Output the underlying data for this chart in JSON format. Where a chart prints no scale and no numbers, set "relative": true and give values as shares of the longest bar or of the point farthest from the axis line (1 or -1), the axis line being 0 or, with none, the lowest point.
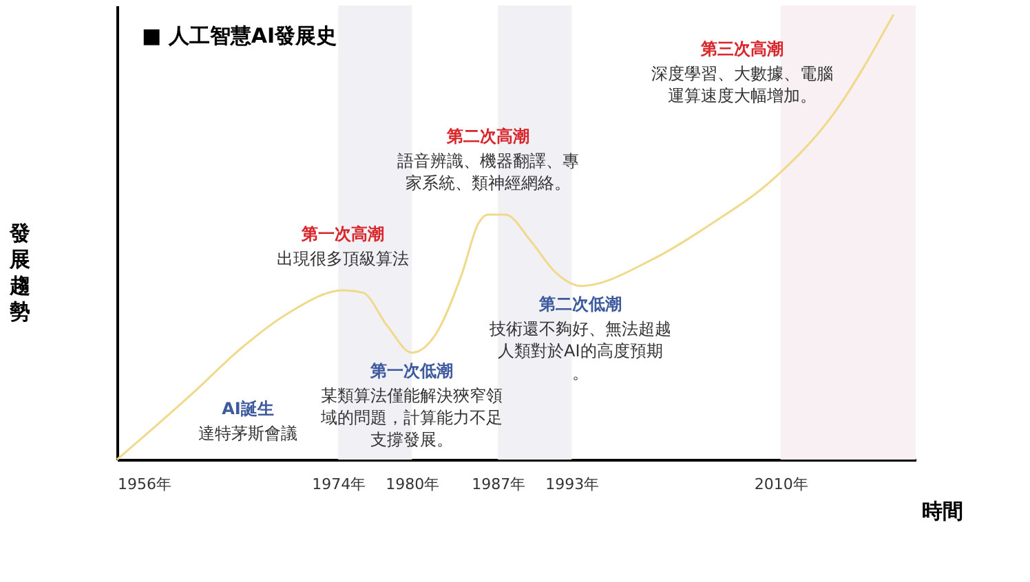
{
  "chart_data": {
    "type": "line",
    "title": "■ 人工智慧AI發展史",
    "xlabel": "時間",
    "ylabel": "發展趨勢",
    "relative": true,
    "xlim": [
      1956,
      2021
    ],
    "xticks": [
      {
        "value": 1956,
        "label": "1956年"
      },
      {
        "value": 1974,
        "label": "1974年"
      },
      {
        "value": 1980,
        "label": "1980年"
      },
      {
        "value": 1987,
        "label": "1987年"
      },
      {
        "value": 1993,
        "label": "1993年"
      },
      {
        "value": 2010,
        "label": "2010年"
      }
    ],
    "grid": false,
    "series": [
      {
        "color": "#f0d98a",
        "x": [
          1956,
          1962.2,
          1966.1,
          1970,
          1974.4,
          1976,
          1978,
          1980,
          1981.9,
          1984.1,
          1985.4,
          1986.2,
          1987.6,
          1989.7,
          1991.7,
          1993.7,
          1999.6,
          2004.4,
          2009.4,
          2014.4,
          2019.2
        ],
        "values": [
          0,
          0.15,
          0.25,
          0.33,
          0.38,
          0.375,
          0.3,
          0.24,
          0.28,
          0.42,
          0.53,
          0.55,
          0.55,
          0.49,
          0.42,
          0.39,
          0.45,
          0.53,
          0.63,
          0.78,
          1
        ]
      }
    ],
    "bands": [
      {
        "axis": "x",
        "from": 1974,
        "to": 1980,
        "color": "#f1f1f5"
      },
      {
        "axis": "x",
        "from": 1987,
        "to": 1993,
        "color": "#f1f1f5"
      },
      {
        "axis": "x",
        "from": 2010,
        "to": 2021,
        "color": "#f8f0f2"
      }
    ],
    "annotations": [
      "AI誕生",
      "達特茅斯會議",
      "第一次高潮",
      "出現很多頂級算法",
      "第一次低潮",
      "某類算法僅能解決狹窄領域的問題，計算能力不足支撐發展。",
      "第二次高潮",
      "語音辨識、機器翻譯、專家系統、類神經網絡。",
      "第二次低潮",
      "技術還不夠好、無法超越人類對於AI的高度預期。",
      "第三次高潮",
      "深度學習、大數據、電腦運算速度大幅增加。"
    ]
  }
}
